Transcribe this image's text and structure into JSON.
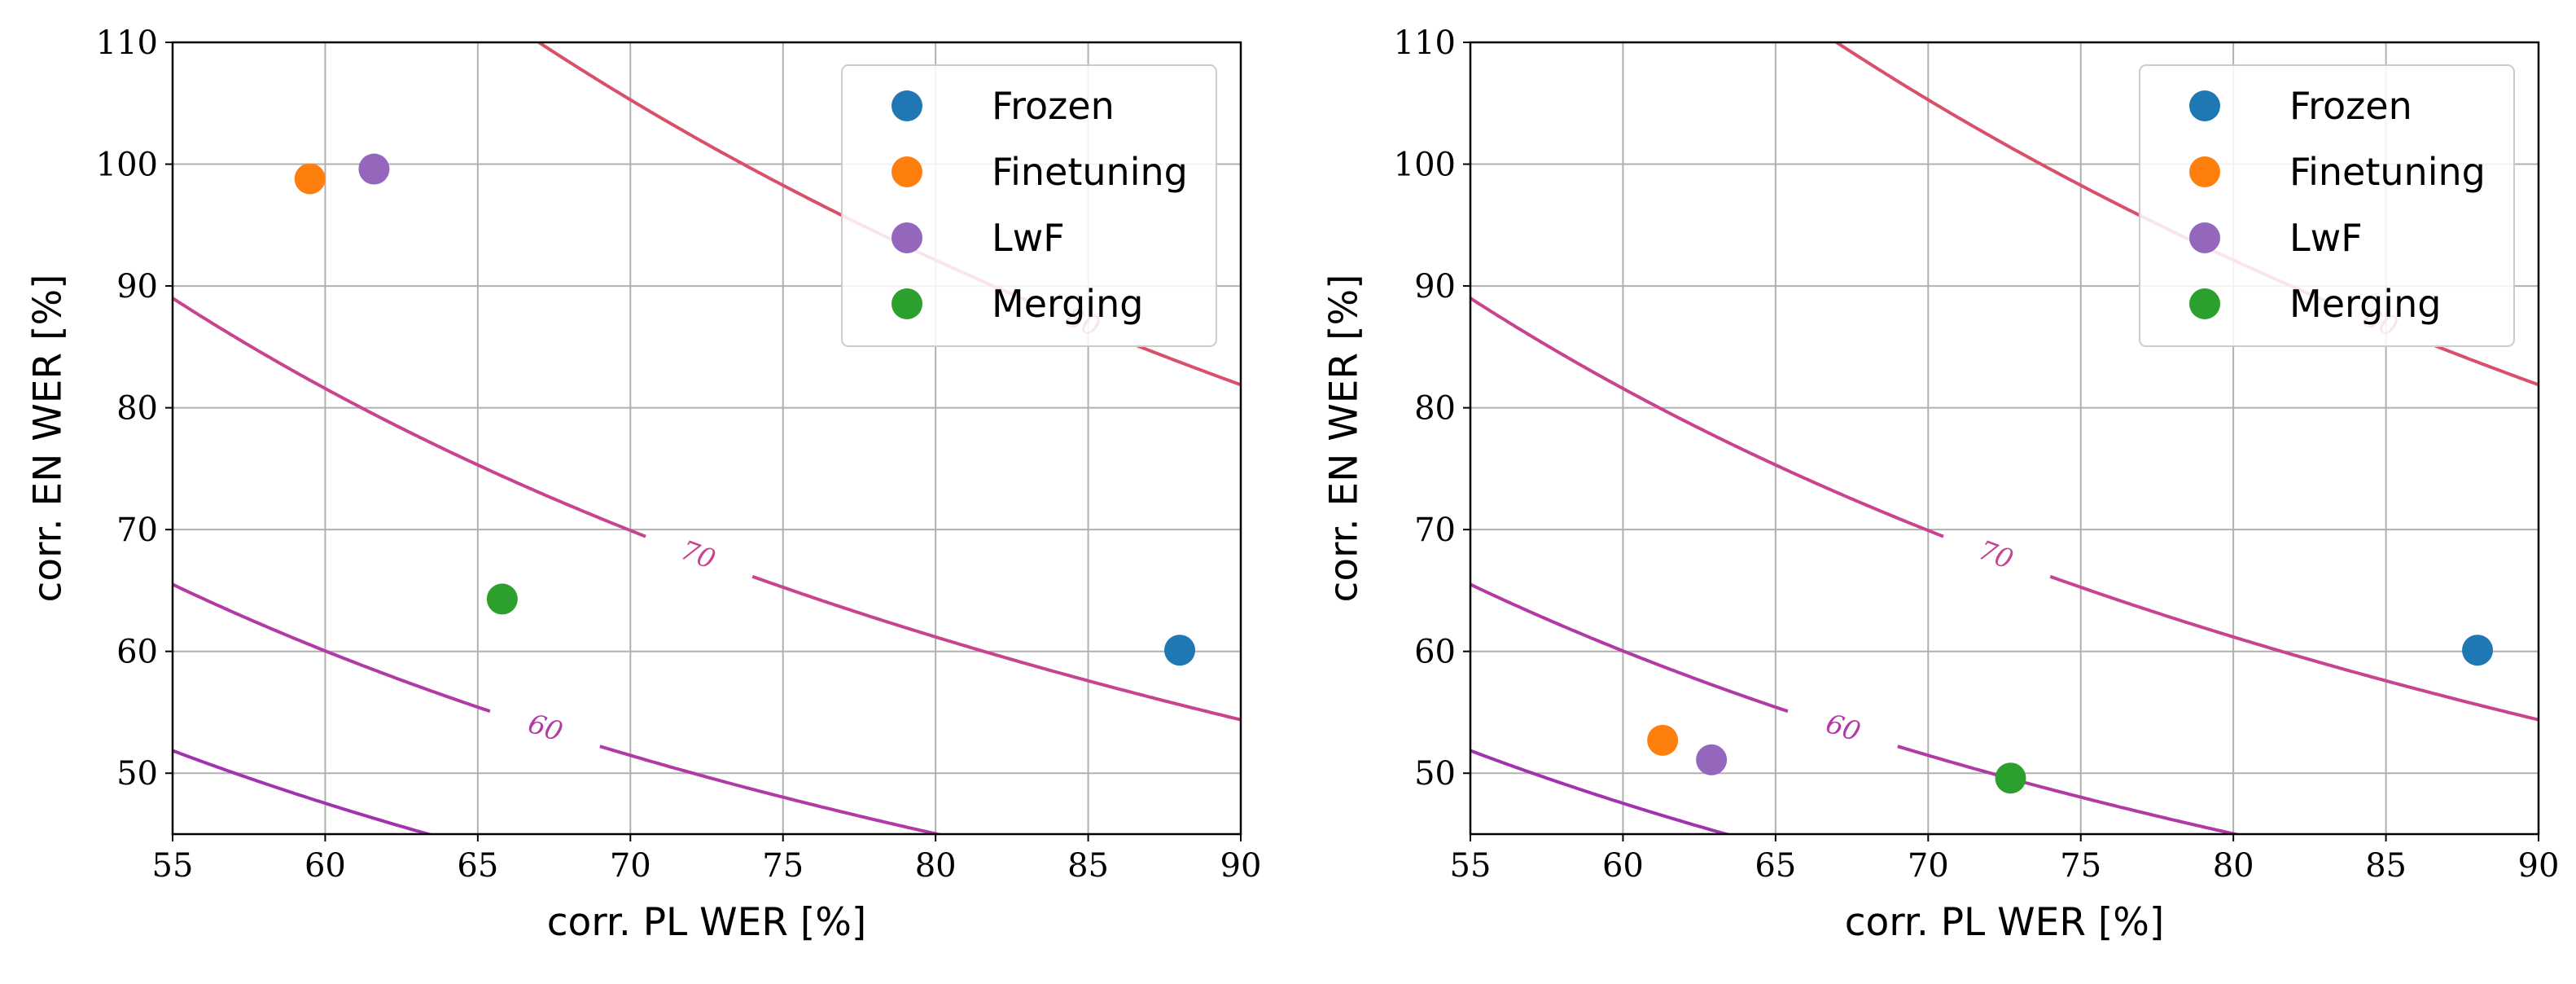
{
  "chart_data": [
    {
      "type": "scatter",
      "panel": "left",
      "xlabel": "corr. PL WER [%]",
      "ylabel": "corr. EN WER [%]",
      "xlim": [
        55,
        90
      ],
      "ylim": [
        45,
        110
      ],
      "xticks": [
        55,
        60,
        65,
        70,
        75,
        80,
        85,
        90
      ],
      "yticks": [
        50,
        60,
        70,
        80,
        90,
        100,
        110
      ],
      "grid": true,
      "legend": "top-right",
      "series": [
        {
          "name": "Frozen",
          "color": "#1f77b4",
          "x": [
            88.0
          ],
          "y": [
            60.1
          ]
        },
        {
          "name": "Finetuning",
          "color": "#ff7f0e",
          "x": [
            59.5
          ],
          "y": [
            98.8
          ]
        },
        {
          "name": "LwF",
          "color": "#9467bd",
          "x": [
            61.6
          ],
          "y": [
            99.6
          ]
        },
        {
          "name": "Merging",
          "color": "#2ca02c",
          "x": [
            65.8
          ],
          "y": [
            64.3
          ]
        }
      ],
      "contours": [
        {
          "level": 60,
          "label": "60",
          "color": "#b23aa4"
        },
        {
          "level": 70,
          "label": "70",
          "color": "#c8448f"
        },
        {
          "level": 80,
          "label": "80",
          "color": "#d9506a"
        }
      ]
    },
    {
      "type": "scatter",
      "panel": "right",
      "xlabel": "corr. PL WER [%]",
      "ylabel": "corr. EN WER [%]",
      "xlim": [
        55,
        90
      ],
      "ylim": [
        45,
        110
      ],
      "xticks": [
        55,
        60,
        65,
        70,
        75,
        80,
        85,
        90
      ],
      "yticks": [
        50,
        60,
        70,
        80,
        90,
        100,
        110
      ],
      "grid": true,
      "legend": "top-right",
      "series": [
        {
          "name": "Frozen",
          "color": "#1f77b4",
          "x": [
            88.0
          ],
          "y": [
            60.1
          ]
        },
        {
          "name": "Finetuning",
          "color": "#ff7f0e",
          "x": [
            61.3
          ],
          "y": [
            52.7
          ]
        },
        {
          "name": "LwF",
          "color": "#9467bd",
          "x": [
            62.9
          ],
          "y": [
            51.1
          ]
        },
        {
          "name": "Merging",
          "color": "#2ca02c",
          "x": [
            72.7
          ],
          "y": [
            49.6
          ]
        }
      ],
      "contours": [
        {
          "level": 60,
          "label": "60",
          "color": "#b23aa4"
        },
        {
          "level": 70,
          "label": "70",
          "color": "#c8448f"
        },
        {
          "level": 80,
          "label": "80",
          "color": "#d9506a"
        }
      ]
    }
  ]
}
